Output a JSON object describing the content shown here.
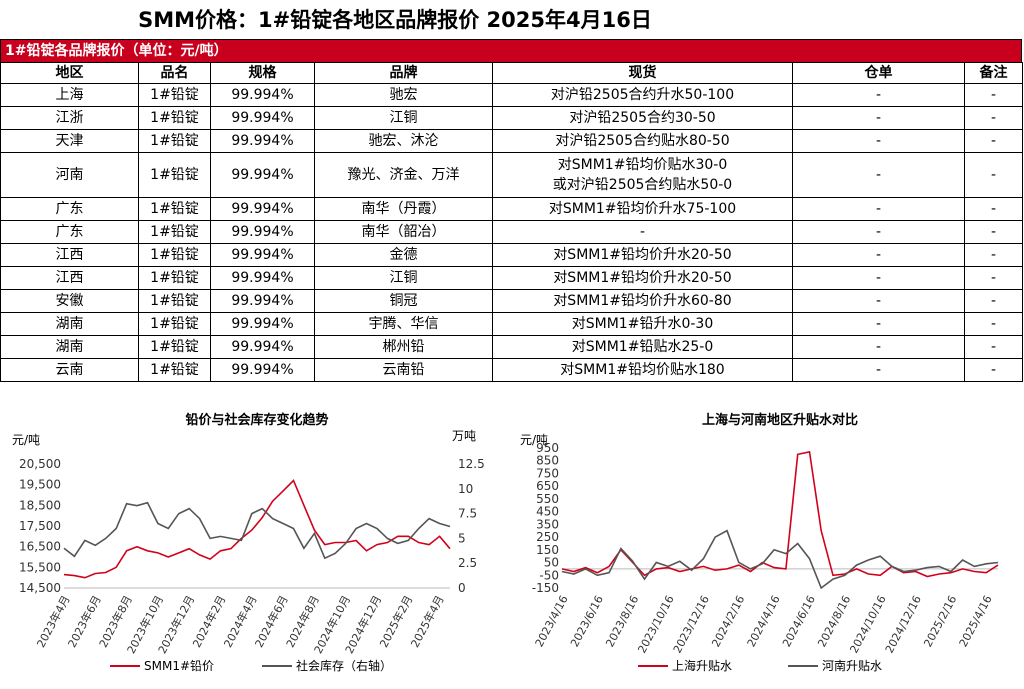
{
  "page_title": "SMM价格：1#铅锭各地区品牌报价 2025年4月16日",
  "table": {
    "caption": "1#铅锭各品牌报价（单位：元/吨）",
    "headers": [
      "地区",
      "品名",
      "规格",
      "品牌",
      "现货",
      "仓单",
      "备注"
    ],
    "rows": [
      [
        "上海",
        "1#铅锭",
        "99.994%",
        "驰宏",
        "对沪铅2505合约升水50-100",
        "-",
        "-"
      ],
      [
        "江浙",
        "1#铅锭",
        "99.994%",
        "江铜",
        "对沪铅2505合约30-50",
        "-",
        "-"
      ],
      [
        "天津",
        "1#铅锭",
        "99.994%",
        "驰宏、沐沦",
        "对沪铅2505合约贴水80-50",
        "-",
        "-"
      ],
      [
        "河南",
        "1#铅锭",
        "99.994%",
        "豫光、济金、万洋",
        "对SMM1#铅均价贴水30-0\n或对沪铅2505合约贴水50-0",
        "-",
        "-"
      ],
      [
        "广东",
        "1#铅锭",
        "99.994%",
        "南华（丹霞）",
        "对SMM1#铅均价升水75-100",
        "-",
        "-"
      ],
      [
        "广东",
        "1#铅锭",
        "99.994%",
        "南华（韶冶）",
        "-",
        "-",
        "-"
      ],
      [
        "江西",
        "1#铅锭",
        "99.994%",
        "金德",
        "对SMM1#铅均价升水20-50",
        "-",
        "-"
      ],
      [
        "江西",
        "1#铅锭",
        "99.994%",
        "江铜",
        "对SMM1#铅均价升水20-50",
        "-",
        "-"
      ],
      [
        "安徽",
        "1#铅锭",
        "99.994%",
        "铜冠",
        "对SMM1#铅均价升水60-80",
        "-",
        "-"
      ],
      [
        "湖南",
        "1#铅锭",
        "99.994%",
        "宇腾、华信",
        "对SMM1#铅升水0-30",
        "-",
        "-"
      ],
      [
        "湖南",
        "1#铅锭",
        "99.994%",
        "郴州铅",
        "对SMM1#铅贴水25-0",
        "-",
        "-"
      ],
      [
        "云南",
        "1#铅锭",
        "99.994%",
        "云南铅",
        "对SMM1#铅均价贴水180",
        "-",
        "-"
      ]
    ]
  },
  "chart_data": [
    {
      "type": "line",
      "title": "铅价与社会库存变化趋势",
      "ylabel": "元/吨",
      "y2label": "万吨",
      "ylim": [
        14500,
        20500
      ],
      "yticks": [
        "20,500",
        "19,500",
        "18,500",
        "17,500",
        "16,500",
        "15,500",
        "14,500"
      ],
      "y2lim": [
        0,
        12.5
      ],
      "y2ticks": [
        "12.5",
        "10",
        "7.5",
        "5",
        "2.5",
        "0"
      ],
      "xticks": [
        "2023年4月",
        "2023年6月",
        "2023年8月",
        "2023年10月",
        "2023年12月",
        "2024年2月",
        "2024年4月",
        "2024年6月",
        "2024年8月",
        "2024年10月",
        "2024年12月",
        "2025年2月",
        "2025年4月"
      ],
      "color_primary": "#d0021b",
      "color_secondary": "#555555",
      "series": [
        {
          "name": "SMM1#铅价",
          "axis": "left",
          "values": [
            15150,
            15100,
            15000,
            15200,
            15250,
            15500,
            16300,
            16500,
            16300,
            16200,
            16000,
            16200,
            16400,
            16100,
            15900,
            16300,
            16400,
            16900,
            17300,
            17900,
            18700,
            19200,
            19700,
            18500,
            17300,
            16600,
            16700,
            16700,
            16800,
            16300,
            16600,
            16700,
            17000,
            17000,
            16700,
            16600,
            17000,
            16400
          ]
        },
        {
          "name": "社会库存（右轴）",
          "axis": "right",
          "values": [
            4.0,
            3.2,
            4.8,
            4.3,
            5.0,
            6.0,
            8.5,
            8.3,
            8.6,
            6.5,
            6.0,
            7.5,
            8.0,
            7.0,
            5.0,
            5.2,
            5.0,
            4.8,
            7.5,
            8.0,
            7.0,
            6.5,
            6.0,
            4.0,
            5.5,
            3.0,
            3.5,
            4.5,
            6.0,
            6.5,
            6.0,
            5.0,
            4.5,
            4.8,
            6.0,
            7.0,
            6.5,
            6.2
          ]
        }
      ]
    },
    {
      "type": "line",
      "title": "上海与河南地区升贴水对比",
      "ylabel": "元/吨",
      "ylim": [
        -150,
        950
      ],
      "yticks": [
        "950",
        "850",
        "750",
        "650",
        "550",
        "450",
        "350",
        "250",
        "150",
        "50",
        "-50",
        "-150"
      ],
      "xticks": [
        "2023/4/16",
        "2023/6/16",
        "2023/8/16",
        "2023/10/16",
        "2023/12/16",
        "2024/2/16",
        "2024/4/16",
        "2024/6/16",
        "2024/8/16",
        "2024/10/16",
        "2024/12/16",
        "2025/2/16",
        "2025/4/16"
      ],
      "color_primary": "#d0021b",
      "color_secondary": "#555555",
      "series": [
        {
          "name": "上海升贴水",
          "values": [
            0,
            -20,
            10,
            -30,
            20,
            150,
            50,
            -50,
            0,
            10,
            -20,
            0,
            20,
            -10,
            0,
            30,
            -20,
            50,
            10,
            0,
            900,
            920,
            300,
            -50,
            -40,
            0,
            -40,
            -50,
            20,
            -30,
            -20,
            -60,
            -40,
            -30,
            0,
            -20,
            -30,
            30
          ]
        },
        {
          "name": "河南升贴水",
          "values": [
            -20,
            -40,
            0,
            -50,
            -30,
            160,
            60,
            -80,
            50,
            20,
            60,
            -10,
            80,
            250,
            300,
            50,
            0,
            40,
            150,
            120,
            200,
            80,
            -150,
            -80,
            -50,
            30,
            70,
            100,
            20,
            -20,
            -10,
            10,
            20,
            -20,
            70,
            20,
            40,
            50
          ]
        }
      ]
    }
  ]
}
